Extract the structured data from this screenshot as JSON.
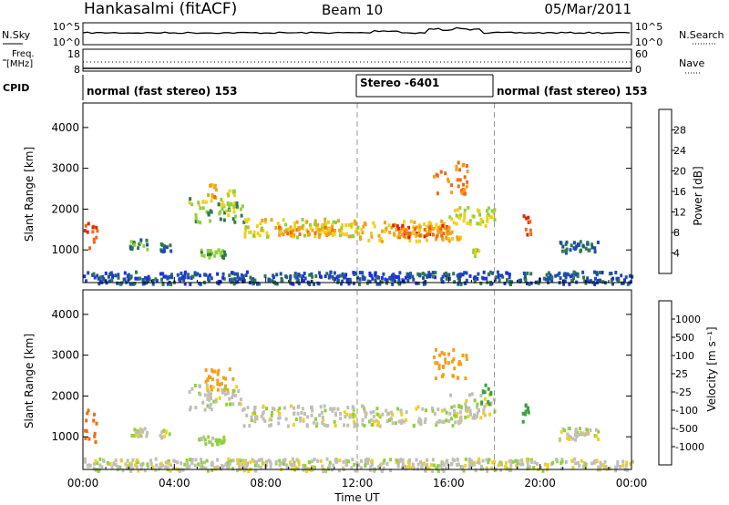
{
  "header": {
    "radar": "Hankasalmi (fitACF)",
    "beam": "Beam 10",
    "date": "05/Mar/2011"
  },
  "panels": {
    "nsky": {
      "label": "N.Sky",
      "ticks_left": [
        "10^5",
        "10^0"
      ],
      "ticks_right": [
        "10^5",
        "10^0"
      ],
      "right_label": "N.Search"
    },
    "freq": {
      "label_line1": "Freq.",
      "label_line2": "[MHz]",
      "ticks_left": [
        "18",
        "8"
      ],
      "ticks_right": [
        "60",
        "0"
      ],
      "right_label": "Nave"
    },
    "cpid": {
      "label": "CPID",
      "segments": [
        {
          "text": "normal (fast stereo) 153",
          "start_hour": 0,
          "end_hour": 12
        },
        {
          "text": "Stereo -6401",
          "start_hour": 12,
          "end_hour": 18
        },
        {
          "text": "normal (fast stereo) 153",
          "start_hour": 18,
          "end_hour": 24
        }
      ]
    }
  },
  "colorbars": {
    "power": {
      "label": "Power [dB]",
      "ticks": [
        "4",
        "8",
        "12",
        "16",
        "20",
        "24",
        "28"
      ],
      "colors": [
        "#1f2be8",
        "#1e4fa8",
        "#2f7a4d",
        "#8fd13a",
        "#f0d020",
        "#f4a01c",
        "#f06a14",
        "#e02510"
      ]
    },
    "velocity": {
      "label": "Velocity [m s⁻¹]",
      "ticks": [
        "1000",
        "500",
        "100",
        "25",
        "-25",
        "-100",
        "-500",
        "-1000"
      ],
      "colors": [
        "#2040c8",
        "#2f7a4d",
        "#3aa040",
        "#8fd13a",
        "#c0c0b8",
        "#f0d020",
        "#f4a01c",
        "#f06a14",
        "#e02510"
      ]
    }
  },
  "chart_data": [
    {
      "type": "heatmap",
      "title": "Power",
      "ylabel": "Slant Range [km]",
      "xlabel": "Time UT",
      "ylim": [
        200,
        4600
      ],
      "y_ticks": [
        "1000",
        "2000",
        "3000",
        "4000"
      ],
      "x_ticks": [
        "00:00",
        "04:00",
        "08:00",
        "12:00",
        "16:00",
        "20:00",
        "00:00"
      ],
      "xlim_hours": [
        0,
        24
      ],
      "echoes": [
        {
          "t0": 0.0,
          "t1": 0.6,
          "r0": 900,
          "r1": 1700,
          "level": 28
        },
        {
          "t0": 2.0,
          "t1": 2.8,
          "r0": 1050,
          "r1": 1300,
          "level": 10
        },
        {
          "t0": 3.3,
          "t1": 3.8,
          "r0": 1000,
          "r1": 1200,
          "level": 8
        },
        {
          "t0": 5.0,
          "t1": 6.2,
          "r0": 850,
          "r1": 1050,
          "level": 12
        },
        {
          "t0": 5.3,
          "t1": 5.8,
          "r0": 2300,
          "r1": 2700,
          "level": 22
        },
        {
          "t0": 6.0,
          "t1": 6.6,
          "r0": 2100,
          "r1": 2500,
          "level": 16
        },
        {
          "t0": 4.6,
          "t1": 7.0,
          "r0": 1700,
          "r1": 2300,
          "level": 14
        },
        {
          "t0": 7.0,
          "t1": 12.0,
          "r0": 1350,
          "r1": 1800,
          "level": 18
        },
        {
          "t0": 8.5,
          "t1": 11.0,
          "r0": 1400,
          "r1": 1600,
          "level": 22
        },
        {
          "t0": 12.0,
          "t1": 16.5,
          "r0": 1250,
          "r1": 1750,
          "level": 20
        },
        {
          "t0": 13.5,
          "t1": 16.0,
          "r0": 1350,
          "r1": 1650,
          "level": 26
        },
        {
          "t0": 16.0,
          "t1": 18.0,
          "r0": 1600,
          "r1": 2100,
          "level": 16
        },
        {
          "t0": 15.3,
          "t1": 16.8,
          "r0": 2400,
          "r1": 3200,
          "level": 24
        },
        {
          "t0": 17.0,
          "t1": 17.3,
          "r0": 850,
          "r1": 1100,
          "level": 14
        },
        {
          "t0": 19.2,
          "t1": 19.6,
          "r0": 1400,
          "r1": 1900,
          "level": 28
        },
        {
          "t0": 20.8,
          "t1": 22.5,
          "r0": 950,
          "r1": 1250,
          "level": 8
        },
        {
          "t0": 0.0,
          "t1": 24.0,
          "r0": 200,
          "r1": 500,
          "level": 6
        }
      ]
    },
    {
      "type": "heatmap",
      "title": "Velocity",
      "ylabel": "Slant Range [km]",
      "xlabel": "Time UT",
      "ylim": [
        200,
        4600
      ],
      "y_ticks": [
        "1000",
        "2000",
        "3000",
        "4000"
      ],
      "x_ticks": [
        "00:00",
        "04:00",
        "08:00",
        "12:00",
        "16:00",
        "20:00",
        "00:00"
      ],
      "xlim_hours": [
        0,
        24
      ],
      "echoes": [
        {
          "t0": 0.0,
          "t1": 0.6,
          "r0": 900,
          "r1": 1700,
          "level": -700
        },
        {
          "t0": 2.0,
          "t1": 2.8,
          "r0": 1050,
          "r1": 1250,
          "level": 0
        },
        {
          "t0": 3.3,
          "t1": 3.8,
          "r0": 1000,
          "r1": 1200,
          "level": 0
        },
        {
          "t0": 5.0,
          "t1": 6.2,
          "r0": 850,
          "r1": 1050,
          "level": 50
        },
        {
          "t0": 5.3,
          "t1": 6.6,
          "r0": 2100,
          "r1": 2700,
          "level": -300
        },
        {
          "t0": 4.6,
          "t1": 7.0,
          "r0": 1700,
          "r1": 2300,
          "level": 0
        },
        {
          "t0": 7.0,
          "t1": 16.5,
          "r0": 1300,
          "r1": 1800,
          "level": 0
        },
        {
          "t0": 16.0,
          "t1": 18.0,
          "r0": 1500,
          "r1": 2100,
          "level": 0
        },
        {
          "t0": 15.3,
          "t1": 16.8,
          "r0": 2400,
          "r1": 3200,
          "level": -300
        },
        {
          "t0": 17.3,
          "t1": 17.8,
          "r0": 1800,
          "r1": 2400,
          "level": 200
        },
        {
          "t0": 19.2,
          "t1": 19.6,
          "r0": 1400,
          "r1": 1900,
          "level": 300
        },
        {
          "t0": 20.8,
          "t1": 22.5,
          "r0": 950,
          "r1": 1250,
          "level": 0
        },
        {
          "t0": 0.0,
          "t1": 24.0,
          "r0": 200,
          "r1": 500,
          "level": 0
        }
      ]
    }
  ]
}
